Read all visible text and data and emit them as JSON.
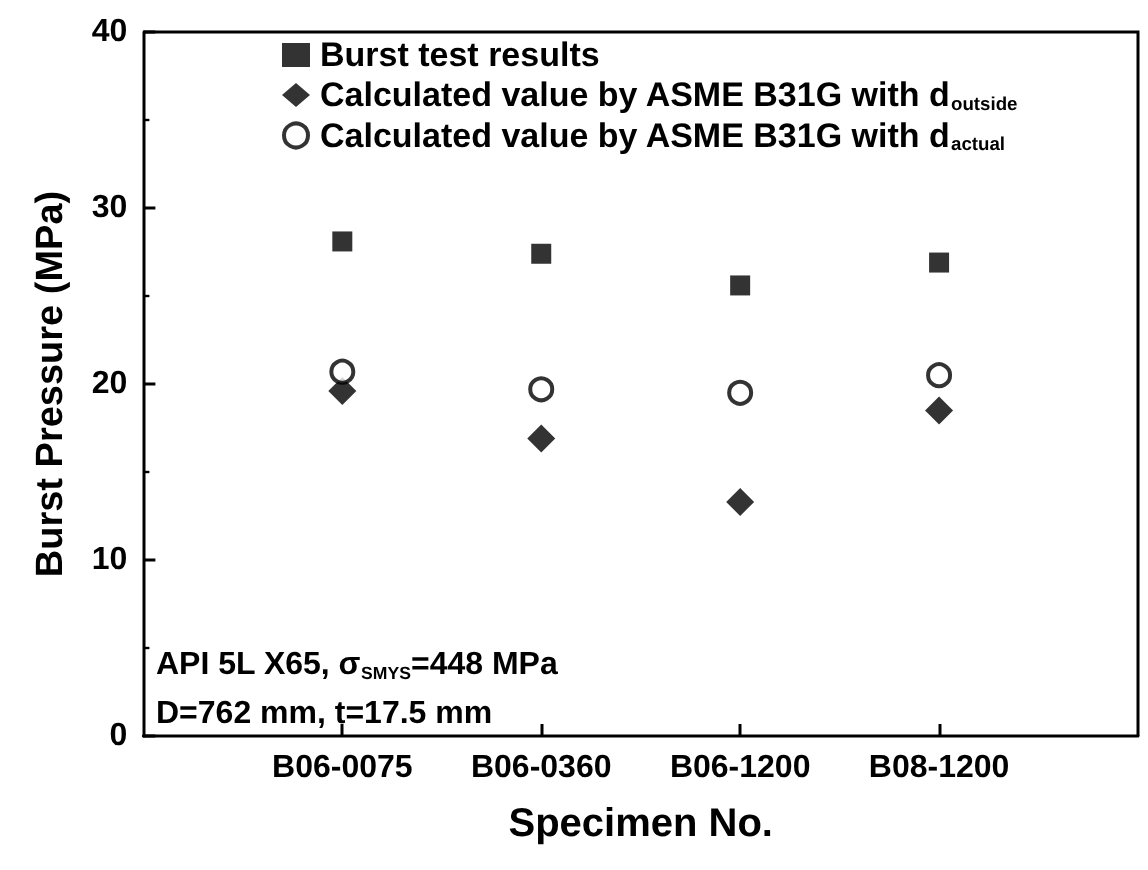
{
  "chart_data": {
    "type": "scatter",
    "xlabel": "Specimen No.",
    "ylabel": "Burst Pressure (MPa)",
    "categories": [
      "B06-0075",
      "B06-0360",
      "B06-1200",
      "B08-1200"
    ],
    "series": [
      {
        "name": "Burst test results",
        "color": "#000000",
        "marker": "square",
        "values": [
          28.1,
          27.4,
          25.6,
          26.9
        ]
      },
      {
        "name": "Calculated value by ASME B31G with d$_{outside}$",
        "color": "#000000",
        "marker": "diamond",
        "values": [
          19.6,
          16.9,
          13.3,
          18.5
        ]
      },
      {
        "name": "Calculated value by ASME B31G with d$_{actual}$",
        "color": "#000000",
        "marker": "circle",
        "values": [
          20.7,
          19.7,
          19.5,
          20.5
        ]
      }
    ],
    "ylim": [
      0,
      40
    ],
    "yticks": [
      0,
      10,
      20,
      30,
      40
    ],
    "grid": false,
    "legend": "top left",
    "annotations": [
      "API 5L X65, σ$_{SMYS}$=448 MPa",
      "D=762 mm, t=17.5 mm"
    ]
  }
}
